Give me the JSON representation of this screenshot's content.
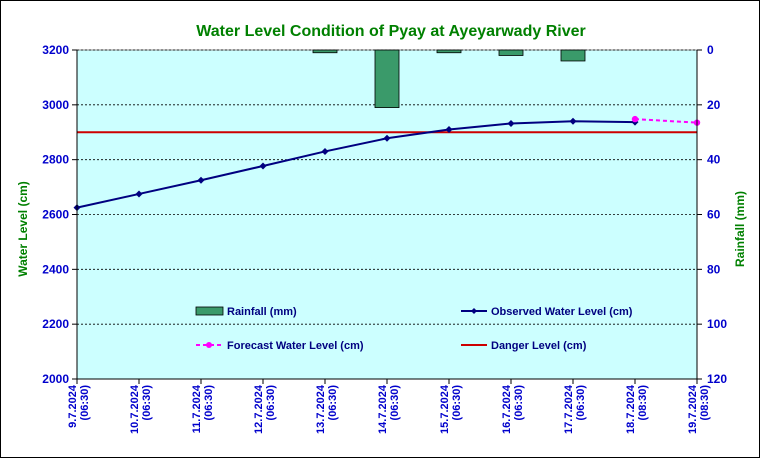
{
  "chart_data": {
    "type": "line",
    "title": "Water Level Condition of Pyay at Ayeyarwady River",
    "ylabel": "Water Level (cm)",
    "y2label": "Rainfall (mm)",
    "ylim": [
      2000,
      3200
    ],
    "y2lim": [
      0,
      120
    ],
    "y2_inverted": true,
    "yticks": [
      "2000",
      "2200",
      "2400",
      "2600",
      "2800",
      "3000",
      "3200"
    ],
    "y2ticks": [
      "0",
      "20",
      "40",
      "60",
      "80",
      "100",
      "120"
    ],
    "categories": [
      "9.7.2024 (06:30)",
      "10.7.2024 (06:30)",
      "11.7.2024 (06:30)",
      "12.7.2024 (06:30)",
      "13.7.2024 (06:30)",
      "14.7.2024 (06:30)",
      "15.7.2024 (06:30)",
      "16.7.2024 (06:30)",
      "17.7.2024 (06:30)",
      "18.7.2024 (08:30)",
      "19.7.2024 (08:30)"
    ],
    "series": [
      {
        "name": "Rainfall (mm)",
        "type": "bar",
        "axis": "right",
        "color": "#3a9a6a",
        "values": [
          0,
          0,
          0,
          0,
          1,
          21,
          1,
          2,
          4,
          0,
          null
        ]
      },
      {
        "name": "Observed Water Level (cm)",
        "type": "line",
        "color": "#000080",
        "values": [
          2625,
          2675,
          2725,
          2777,
          2830,
          2878,
          2910,
          2932,
          2940,
          2937,
          null
        ]
      },
      {
        "name": "Forecast Water Level (cm)",
        "type": "line",
        "dashed": true,
        "color": "#ff00ff",
        "values": [
          null,
          null,
          null,
          null,
          null,
          null,
          null,
          null,
          null,
          2948,
          2935
        ]
      },
      {
        "name": "Danger Level (cm)",
        "type": "hline",
        "color": "#cc0000",
        "value": 2900
      }
    ],
    "grid": true,
    "legend": "inside-bottom",
    "colors": {
      "plot_bg": "#ccffff",
      "title": "#008000",
      "left_axis_label": "#008000",
      "right_axis_label": "#008000",
      "tick_labels": "#0000cc",
      "legend_text": "#000080"
    }
  }
}
